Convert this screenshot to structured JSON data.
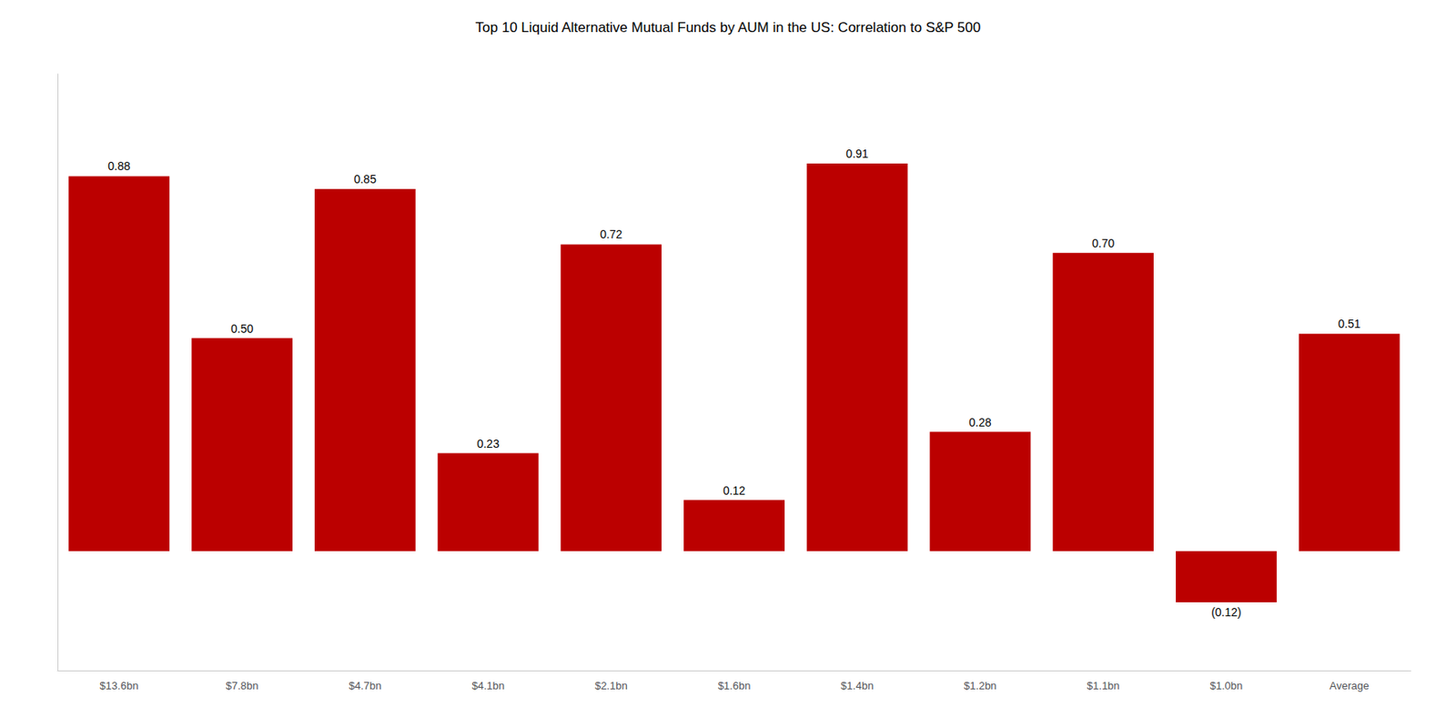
{
  "chart_data": {
    "type": "bar",
    "title": "Top 10 Liquid Alternative Mutual Funds by AUM in the US: Correlation to S&P 500",
    "categories": [
      "$13.6bn",
      "$7.8bn",
      "$4.7bn",
      "$4.1bn",
      "$2.1bn",
      "$1.6bn",
      "$1.4bn",
      "$1.2bn",
      "$1.1bn",
      "$1.0bn",
      "Average"
    ],
    "values": [
      0.88,
      0.5,
      0.85,
      0.23,
      0.72,
      0.12,
      0.91,
      0.28,
      0.7,
      -0.12,
      0.51
    ],
    "value_labels": [
      "0.88",
      "0.50",
      "0.85",
      "0.23",
      "0.72",
      "0.12",
      "0.91",
      "0.28",
      "0.70",
      "(0.12)",
      "0.51"
    ],
    "color": "#bb0000",
    "ylim": [
      -0.28,
      1.12
    ],
    "grid": false,
    "data_labels": true,
    "tick_labels": "x"
  }
}
